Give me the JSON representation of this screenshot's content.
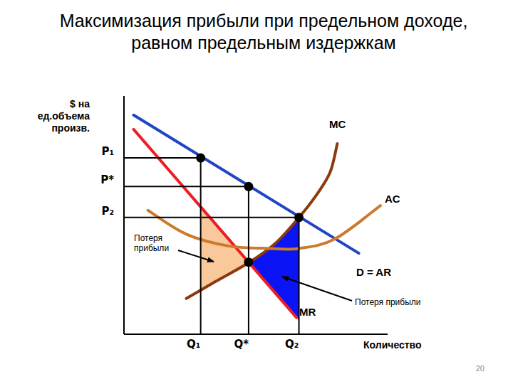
{
  "chart_data": {
    "type": "line",
    "title": "Максимизация прибыли при предельном доходе, равном предельным издержкам",
    "y_label": "$ на ед.объема произв.",
    "x_label": "Количество",
    "xlim": [
      0,
      110
    ],
    "ylim": [
      0,
      100
    ],
    "xticks": [
      {
        "value": 32,
        "label": "Q₁"
      },
      {
        "value": 52,
        "label": "Q*"
      },
      {
        "value": 73,
        "label": "Q₂"
      }
    ],
    "yticks": [
      {
        "value": 74,
        "label": "P₁"
      },
      {
        "value": 62,
        "label": "P*"
      },
      {
        "value": 49,
        "label": "P₂"
      }
    ],
    "grid": false,
    "series": [
      {
        "name": "D = AR",
        "color": "#1f45c4",
        "x": [
          4,
          98
        ],
        "values": [
          92,
          34
        ]
      },
      {
        "name": "MR",
        "color": "#ee1c25",
        "x": [
          4,
          72
        ],
        "values": [
          86,
          7
        ]
      },
      {
        "name": "MC",
        "color": "#8b3a0e",
        "x": [
          26,
          38,
          52,
          63,
          73,
          80,
          86,
          89
        ],
        "values": [
          15,
          22,
          30,
          38,
          49,
          58,
          68,
          80
        ]
      },
      {
        "name": "AC",
        "color": "#cc7a2c",
        "x": [
          10,
          26,
          44,
          61,
          73,
          88,
          107
        ],
        "values": [
          52,
          42,
          37,
          36,
          36,
          40,
          54
        ]
      }
    ],
    "annotations": [
      {
        "text": "Потеря прибыли"
      },
      {
        "text": "Потеря прибыли"
      }
    ]
  },
  "page_number": 20
}
